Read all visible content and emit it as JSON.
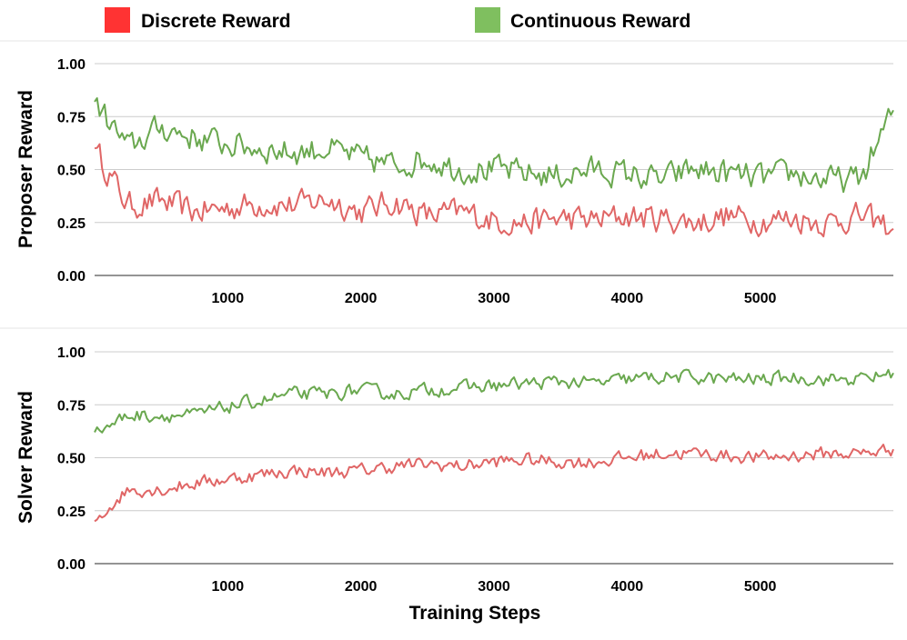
{
  "chart_data": [
    {
      "type": "line",
      "ylabel": "Proposer Reward",
      "xlabel": "",
      "x_range": [
        0,
        6000
      ],
      "ylim": [
        0,
        1
      ],
      "yticks": [
        "0.00",
        "0.25",
        "0.50",
        "0.75",
        "1.00"
      ],
      "xticks": [
        "1000",
        "2000",
        "3000",
        "4000",
        "5000"
      ],
      "grid": "horizontal",
      "series": [
        {
          "name": "Discrete Reward",
          "color": "#e06666",
          "x": [
            0,
            250,
            500,
            750,
            1000,
            1250,
            1500,
            1750,
            2000,
            2250,
            2500,
            2750,
            3000,
            3250,
            3500,
            3750,
            4000,
            4250,
            4500,
            4750,
            5000,
            5250,
            5500,
            5750,
            6000
          ],
          "y": [
            0.6,
            0.33,
            0.35,
            0.3,
            0.32,
            0.34,
            0.33,
            0.36,
            0.3,
            0.35,
            0.28,
            0.3,
            0.26,
            0.25,
            0.27,
            0.26,
            0.28,
            0.27,
            0.25,
            0.28,
            0.26,
            0.27,
            0.25,
            0.28,
            0.22
          ]
        },
        {
          "name": "Continuous Reward",
          "color": "#6aa84f",
          "x": [
            0,
            250,
            500,
            750,
            1000,
            1250,
            1500,
            1750,
            2000,
            2250,
            2500,
            2750,
            3000,
            3250,
            3500,
            3750,
            4000,
            4250,
            4500,
            4750,
            5000,
            5250,
            5500,
            5750,
            6000
          ],
          "y": [
            0.82,
            0.6,
            0.7,
            0.65,
            0.62,
            0.6,
            0.58,
            0.6,
            0.55,
            0.52,
            0.55,
            0.5,
            0.5,
            0.48,
            0.47,
            0.5,
            0.48,
            0.45,
            0.5,
            0.48,
            0.46,
            0.48,
            0.45,
            0.45,
            0.78
          ]
        }
      ]
    },
    {
      "type": "line",
      "ylabel": "Solver Reward",
      "xlabel": "Training Steps",
      "x_range": [
        0,
        6000
      ],
      "ylim": [
        0,
        1
      ],
      "yticks": [
        "0.00",
        "0.25",
        "0.50",
        "0.75",
        "1.00"
      ],
      "xticks": [
        "1000",
        "2000",
        "3000",
        "4000",
        "5000"
      ],
      "grid": "horizontal",
      "series": [
        {
          "name": "Discrete Reward",
          "color": "#e06666",
          "x": [
            0,
            250,
            500,
            750,
            1000,
            1250,
            1500,
            1750,
            2000,
            2250,
            2500,
            2750,
            3000,
            3250,
            3500,
            3750,
            4000,
            4250,
            4500,
            4750,
            5000,
            5250,
            5500,
            5750,
            6000
          ],
          "y": [
            0.2,
            0.35,
            0.35,
            0.38,
            0.4,
            0.42,
            0.44,
            0.43,
            0.44,
            0.46,
            0.47,
            0.46,
            0.48,
            0.49,
            0.48,
            0.48,
            0.5,
            0.52,
            0.52,
            0.51,
            0.5,
            0.51,
            0.52,
            0.52,
            0.54
          ]
        },
        {
          "name": "Continuous Reward",
          "color": "#6aa84f",
          "x": [
            0,
            250,
            500,
            750,
            1000,
            1250,
            1500,
            1750,
            2000,
            2250,
            2500,
            2750,
            3000,
            3250,
            3500,
            3750,
            4000,
            4250,
            4500,
            4750,
            5000,
            5250,
            5500,
            5750,
            6000
          ],
          "y": [
            0.62,
            0.7,
            0.7,
            0.7,
            0.74,
            0.77,
            0.8,
            0.8,
            0.82,
            0.8,
            0.82,
            0.83,
            0.84,
            0.85,
            0.86,
            0.85,
            0.87,
            0.88,
            0.88,
            0.87,
            0.87,
            0.88,
            0.87,
            0.87,
            0.9
          ]
        }
      ]
    }
  ],
  "legend": [
    {
      "label": "Discrete Reward",
      "color": "#ff3333"
    },
    {
      "label": "Continuous Reward",
      "color": "#7fbf5f"
    }
  ]
}
